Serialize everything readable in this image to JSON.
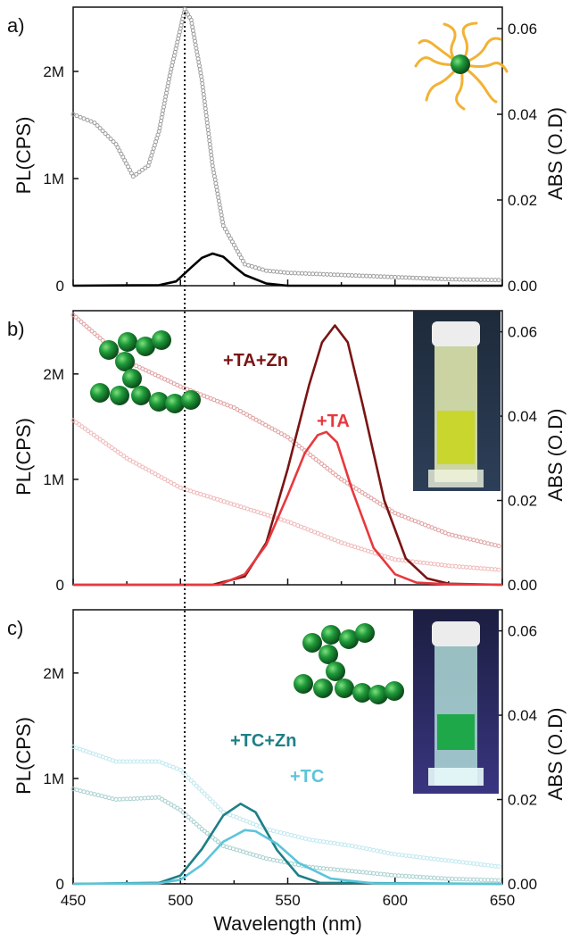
{
  "chart_data": {
    "type": "line",
    "shared_x": {
      "label": "Wavelength (nm)",
      "range": [
        450,
        650
      ],
      "ticks": [
        "450",
        "500",
        "550",
        "600",
        "650"
      ]
    },
    "left_axis_ticks": [
      "0",
      "1M",
      "2M"
    ],
    "right_axis_ticks": [
      "0.00",
      "0.02",
      "0.04",
      "0.06"
    ],
    "ylabel_left": "PL(CPS)",
    "ylabel_right": "ABS (O.D)",
    "pl_range": [
      0,
      2600000
    ],
    "abs_range": [
      0,
      0.065
    ],
    "dotted_marker_x": 502,
    "panels": [
      {
        "letter": "a)",
        "series": [
          {
            "axis": "right",
            "style": "dots",
            "color": "#9e9e9e",
            "x": [
              450,
              460,
              470,
              478,
              485,
              490,
              495,
              500,
              502,
              505,
              510,
              515,
              520,
              530,
              540,
              550,
              575,
              600,
              625,
              650
            ],
            "y": [
              0.04,
              0.038,
              0.033,
              0.0255,
              0.028,
              0.036,
              0.049,
              0.06,
              0.0645,
              0.062,
              0.048,
              0.028,
              0.014,
              0.005,
              0.0035,
              0.003,
              0.0025,
              0.002,
              0.0015,
              0.0013
            ]
          },
          {
            "axis": "left",
            "style": "line",
            "color": "#000000",
            "x": [
              450,
              490,
              498,
              505,
              510,
              515,
              520,
              525,
              530,
              540,
              550,
              650
            ],
            "y": [
              0,
              5000,
              40000,
              170000,
              260000,
              300000,
              270000,
              180000,
              100000,
              20000,
              0,
              0
            ]
          }
        ],
        "annotations": []
      },
      {
        "letter": "b)",
        "series": [
          {
            "axis": "right",
            "style": "dots",
            "color": "#e0a0a0",
            "x": [
              450,
              475,
              500,
              525,
              550,
              575,
              600,
              625,
              650
            ],
            "y": [
              0.064,
              0.053,
              0.047,
              0.042,
              0.035,
              0.025,
              0.017,
              0.012,
              0.009
            ]
          },
          {
            "axis": "right",
            "style": "dots",
            "color": "#f0b8b8",
            "x": [
              450,
              475,
              500,
              525,
              550,
              575,
              600,
              625,
              650
            ],
            "y": [
              0.039,
              0.03,
              0.023,
              0.019,
              0.015,
              0.01,
              0.006,
              0.0045,
              0.0035
            ]
          },
          {
            "name": "+TA+Zn",
            "axis": "left",
            "style": "line",
            "color": "#7a1414",
            "x": [
              450,
              515,
              530,
              540,
              550,
              560,
              566,
              572,
              578,
              585,
              595,
              605,
              615,
              625,
              650
            ],
            "y": [
              0,
              0,
              80000,
              400000,
              1100000,
              1900000,
              2300000,
              2460000,
              2300000,
              1700000,
              800000,
              250000,
              60000,
              10000,
              0
            ]
          },
          {
            "name": "+TA",
            "axis": "left",
            "style": "line",
            "color": "#e8383d",
            "x": [
              450,
              518,
              530,
              540,
              550,
              558,
              564,
              568,
              573,
              580,
              590,
              600,
              610,
              625,
              650
            ],
            "y": [
              0,
              0,
              100000,
              380000,
              850000,
              1250000,
              1420000,
              1450000,
              1350000,
              900000,
              350000,
              100000,
              20000,
              5000,
              0
            ]
          }
        ],
        "annotations": [
          {
            "text": "+TA+Zn",
            "color": "#7a1414"
          },
          {
            "text": "+TA",
            "color": "#e8383d"
          }
        ]
      },
      {
        "letter": "c)",
        "series": [
          {
            "axis": "right",
            "style": "dots",
            "color": "#bfe8f0",
            "x": [
              450,
              470,
              490,
              500,
              510,
              520,
              540,
              560,
              580,
              600,
              625,
              650
            ],
            "y": [
              0.0325,
              0.029,
              0.029,
              0.027,
              0.022,
              0.017,
              0.013,
              0.0105,
              0.009,
              0.007,
              0.0055,
              0.004
            ]
          },
          {
            "axis": "right",
            "style": "dots",
            "color": "#a8d0d0",
            "x": [
              450,
              470,
              490,
              500,
              510,
              520,
              540,
              560,
              580,
              600,
              625,
              650
            ],
            "y": [
              0.0225,
              0.02,
              0.0205,
              0.0175,
              0.013,
              0.009,
              0.006,
              0.004,
              0.003,
              0.002,
              0.0012,
              0.0008
            ]
          },
          {
            "name": "+TC+Zn",
            "axis": "left",
            "style": "line",
            "color": "#1e7f86",
            "x": [
              450,
              490,
              500,
              510,
              520,
              528,
              535,
              545,
              555,
              565,
              650
            ],
            "y": [
              0,
              10000,
              80000,
              330000,
              650000,
              760000,
              680000,
              320000,
              80000,
              10000,
              0
            ]
          },
          {
            "name": "+TC",
            "axis": "left",
            "style": "line",
            "color": "#5bc5da",
            "x": [
              450,
              490,
              500,
              510,
              520,
              530,
              535,
              545,
              555,
              570,
              590,
              650
            ],
            "y": [
              0,
              5000,
              40000,
              180000,
              400000,
              510000,
              500000,
              380000,
              200000,
              50000,
              5000,
              0
            ]
          }
        ],
        "annotations": [
          {
            "text": "+TC+Zn",
            "color": "#1e7f86"
          },
          {
            "text": "+TC",
            "color": "#5bc5da"
          }
        ]
      }
    ]
  }
}
